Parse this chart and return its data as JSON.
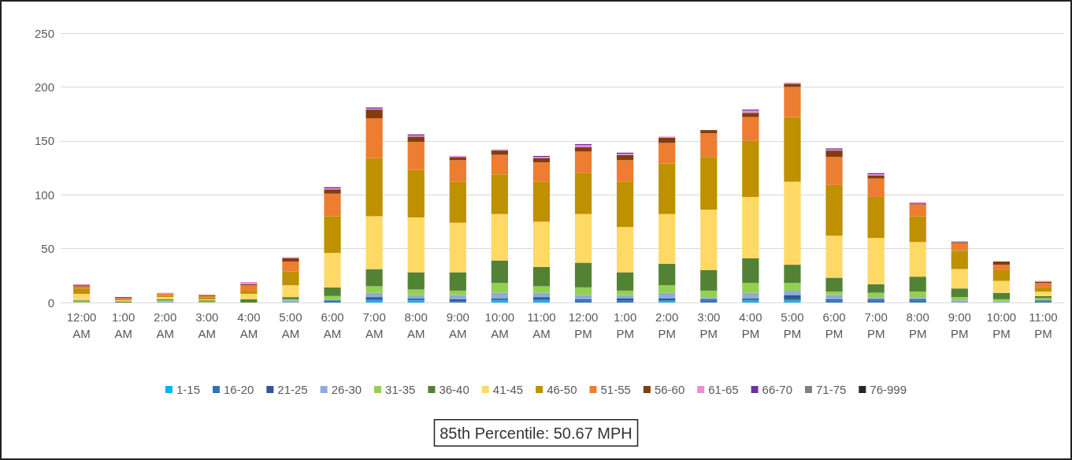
{
  "chart_data": {
    "type": "bar",
    "stacked": true,
    "categories": [
      "12:00 AM",
      "1:00 AM",
      "2:00 AM",
      "3:00 AM",
      "4:00 AM",
      "5:00 AM",
      "6:00 AM",
      "7:00 AM",
      "8:00 AM",
      "9:00 AM",
      "10:00 AM",
      "11:00 AM",
      "12:00 PM",
      "1:00 PM",
      "2:00 PM",
      "3:00 PM",
      "4:00 PM",
      "5:00 PM",
      "6:00 PM",
      "7:00 PM",
      "8:00 PM",
      "9:00 PM",
      "10:00 PM",
      "11:00 PM"
    ],
    "series": [
      {
        "name": "1-15",
        "color": "#00b0f0",
        "values": [
          0,
          0,
          0,
          0,
          0,
          0,
          0,
          2,
          2,
          0,
          2,
          2,
          0,
          0,
          1,
          0,
          2,
          2,
          0,
          0,
          0,
          0,
          0,
          0
        ]
      },
      {
        "name": "16-20",
        "color": "#2e75b6",
        "values": [
          0,
          0,
          0,
          0,
          0,
          0,
          2,
          1,
          1,
          1,
          1,
          1,
          2,
          2,
          1,
          2,
          1,
          1,
          2,
          2,
          2,
          0,
          0,
          1
        ]
      },
      {
        "name": "21-25",
        "color": "#2f5597",
        "values": [
          0,
          0,
          0,
          0,
          0,
          0,
          0,
          2,
          1,
          2,
          1,
          2,
          1,
          2,
          2,
          1,
          1,
          4,
          1,
          1,
          1,
          0,
          0,
          1
        ]
      },
      {
        "name": "26-30",
        "color": "#8faadc",
        "values": [
          0,
          0,
          1,
          0,
          0,
          2,
          1,
          4,
          3,
          4,
          5,
          4,
          4,
          3,
          5,
          2,
          5,
          4,
          4,
          2,
          2,
          2,
          1,
          0
        ]
      },
      {
        "name": "31-35",
        "color": "#92d050",
        "values": [
          1,
          0,
          1,
          1,
          0,
          1,
          3,
          6,
          5,
          4,
          9,
          6,
          7,
          4,
          7,
          6,
          9,
          7,
          3,
          4,
          5,
          3,
          2,
          2
        ]
      },
      {
        "name": "36-40",
        "color": "#548235",
        "values": [
          1,
          1,
          1,
          1,
          3,
          2,
          8,
          16,
          16,
          17,
          21,
          18,
          23,
          17,
          20,
          19,
          23,
          17,
          13,
          8,
          14,
          8,
          6,
          2
        ]
      },
      {
        "name": "41-45",
        "color": "#ffd966",
        "values": [
          6,
          1,
          2,
          1,
          5,
          11,
          32,
          49,
          51,
          46,
          43,
          42,
          45,
          42,
          46,
          56,
          57,
          77,
          39,
          43,
          32,
          18,
          11,
          4
        ]
      },
      {
        "name": "46-50",
        "color": "#bf9000",
        "values": [
          5,
          1,
          1,
          2,
          3,
          13,
          34,
          54,
          44,
          38,
          37,
          37,
          38,
          42,
          47,
          49,
          52,
          60,
          47,
          38,
          24,
          17,
          10,
          4
        ]
      },
      {
        "name": "51-55",
        "color": "#ed7d31",
        "values": [
          2,
          1,
          2,
          1,
          5,
          9,
          21,
          37,
          26,
          20,
          18,
          18,
          20,
          20,
          19,
          22,
          22,
          28,
          26,
          17,
          11,
          7,
          5,
          4
        ]
      },
      {
        "name": "56-60",
        "color": "#843c0c",
        "values": [
          1,
          1,
          0,
          1,
          1,
          3,
          4,
          8,
          5,
          3,
          4,
          4,
          4,
          5,
          5,
          3,
          4,
          3,
          6,
          3,
          1,
          1,
          3,
          1
        ]
      },
      {
        "name": "61-65",
        "color": "#ea8ed9",
        "values": [
          1,
          0,
          1,
          0,
          2,
          1,
          1,
          1,
          1,
          1,
          1,
          1,
          2,
          1,
          1,
          0,
          2,
          1,
          1,
          1,
          1,
          1,
          0,
          1
        ]
      },
      {
        "name": "66-70",
        "color": "#7030a0",
        "values": [
          0,
          0,
          0,
          0,
          0,
          0,
          1,
          1,
          1,
          0,
          0,
          1,
          1,
          1,
          0,
          0,
          1,
          0,
          1,
          1,
          0,
          0,
          0,
          0
        ]
      },
      {
        "name": "71-75",
        "color": "#808080",
        "values": [
          0,
          0,
          0,
          0,
          0,
          0,
          0,
          0,
          0,
          0,
          0,
          0,
          0,
          0,
          0,
          0,
          0,
          0,
          0,
          0,
          0,
          0,
          0,
          0
        ]
      },
      {
        "name": "76-999",
        "color": "#262626",
        "values": [
          0,
          0,
          0,
          0,
          0,
          0,
          0,
          0,
          0,
          0,
          0,
          0,
          0,
          0,
          0,
          0,
          0,
          0,
          0,
          0,
          0,
          0,
          0,
          0
        ]
      }
    ],
    "ylim": [
      0,
      250
    ],
    "yticks": [
      0,
      50,
      100,
      150,
      200,
      250
    ],
    "grid": "y",
    "legend": "bottom",
    "annotations": [
      "85th Percentile: 50.67 MPH"
    ]
  }
}
